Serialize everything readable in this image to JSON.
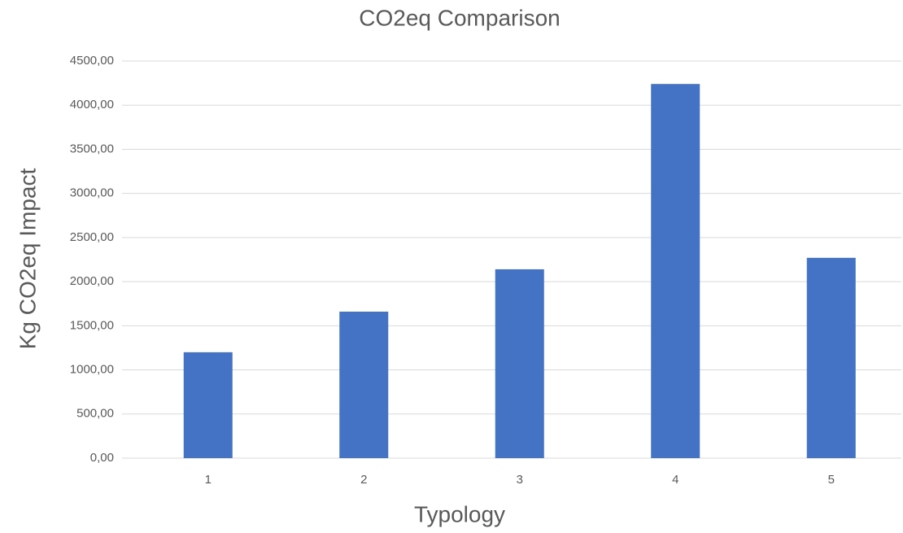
{
  "chart_data": {
    "type": "bar",
    "title": "CO2eq Comparison",
    "x_label": "Typology",
    "y_label": "Kg CO2eq Impact",
    "categories": [
      "1",
      "2",
      "3",
      "4",
      "5"
    ],
    "values": [
      1200,
      1660,
      2140,
      4240,
      2270
    ],
    "color": "#4472c4",
    "ylim": [
      0,
      4500
    ],
    "yticks": [
      {
        "value": 0,
        "label": "0,00"
      },
      {
        "value": 500,
        "label": "500,00"
      },
      {
        "value": 1000,
        "label": "1000,00"
      },
      {
        "value": 1500,
        "label": "1500,00"
      },
      {
        "value": 2000,
        "label": "2000,00"
      },
      {
        "value": 2500,
        "label": "2500,00"
      },
      {
        "value": 3000,
        "label": "3000,00"
      },
      {
        "value": 3500,
        "label": "3500,00"
      },
      {
        "value": 4000,
        "label": "4000,00"
      },
      {
        "value": 4500,
        "label": "4500,00"
      }
    ],
    "grid": true
  }
}
